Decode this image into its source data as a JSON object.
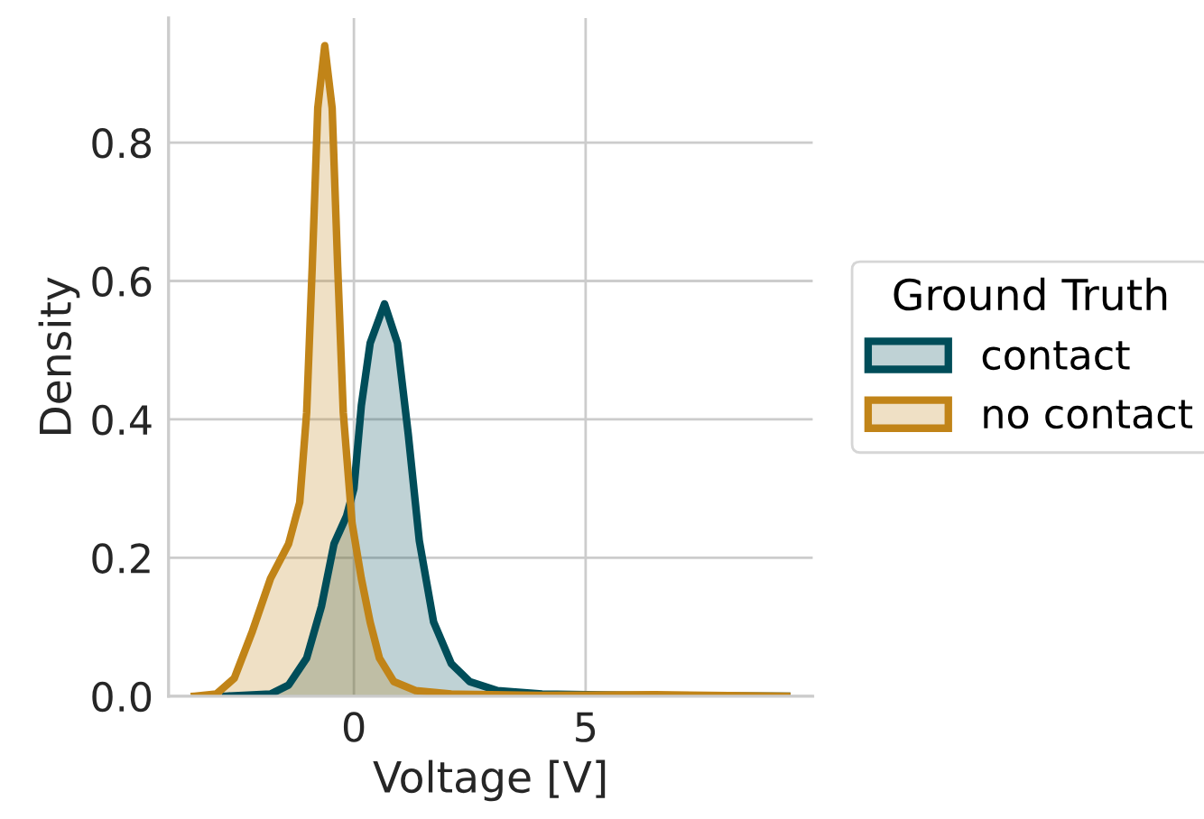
{
  "chart_data": {
    "type": "area",
    "xlabel": "Voltage [V]",
    "ylabel": "Density",
    "legend_title": "Ground Truth",
    "legend": "right",
    "grid": true,
    "xlim": [
      -4.0,
      9.9
    ],
    "xticks": [
      0,
      5
    ],
    "ylim": [
      0,
      0.98
    ],
    "yticks": [
      {
        "value": 0,
        "label": "0.0"
      },
      {
        "value": 0.2,
        "label": "0.2"
      },
      {
        "value": 0.4,
        "label": "0.4"
      },
      {
        "value": 0.6,
        "label": "0.6"
      },
      {
        "value": 0.8,
        "label": "0.8"
      }
    ],
    "series": [
      {
        "name": "contact",
        "color": "#004d59",
        "x": [
          -2.77,
          -1.8,
          -1.41,
          -1.02,
          -0.7,
          -0.43,
          -0.16,
          0,
          0.16,
          0.35,
          0.66,
          0.94,
          1.17,
          1.41,
          1.72,
          2.1,
          2.5,
          3.1,
          4.06,
          6.0,
          9.34
        ],
        "values": [
          0,
          0.003,
          0.016,
          0.055,
          0.13,
          0.22,
          0.26,
          0.3,
          0.42,
          0.51,
          0.567,
          0.51,
          0.38,
          0.225,
          0.107,
          0.047,
          0.021,
          0.008,
          0.003,
          0.001,
          0
        ]
      },
      {
        "name": "no contact",
        "color": "#c18418",
        "x": [
          -3.44,
          -2.97,
          -2.58,
          -2.19,
          -1.8,
          -1.41,
          -1.17,
          -1.02,
          -0.9,
          -0.78,
          -0.63,
          -0.47,
          -0.35,
          -0.23,
          -0.04,
          0.16,
          0.35,
          0.55,
          0.86,
          1.33,
          2.1,
          4.0,
          6.5,
          9.34
        ],
        "values": [
          0,
          0.003,
          0.026,
          0.094,
          0.17,
          0.22,
          0.28,
          0.41,
          0.62,
          0.85,
          0.94,
          0.85,
          0.62,
          0.41,
          0.25,
          0.17,
          0.107,
          0.055,
          0.021,
          0.008,
          0.003,
          0.001,
          0.002,
          0
        ]
      }
    ]
  }
}
